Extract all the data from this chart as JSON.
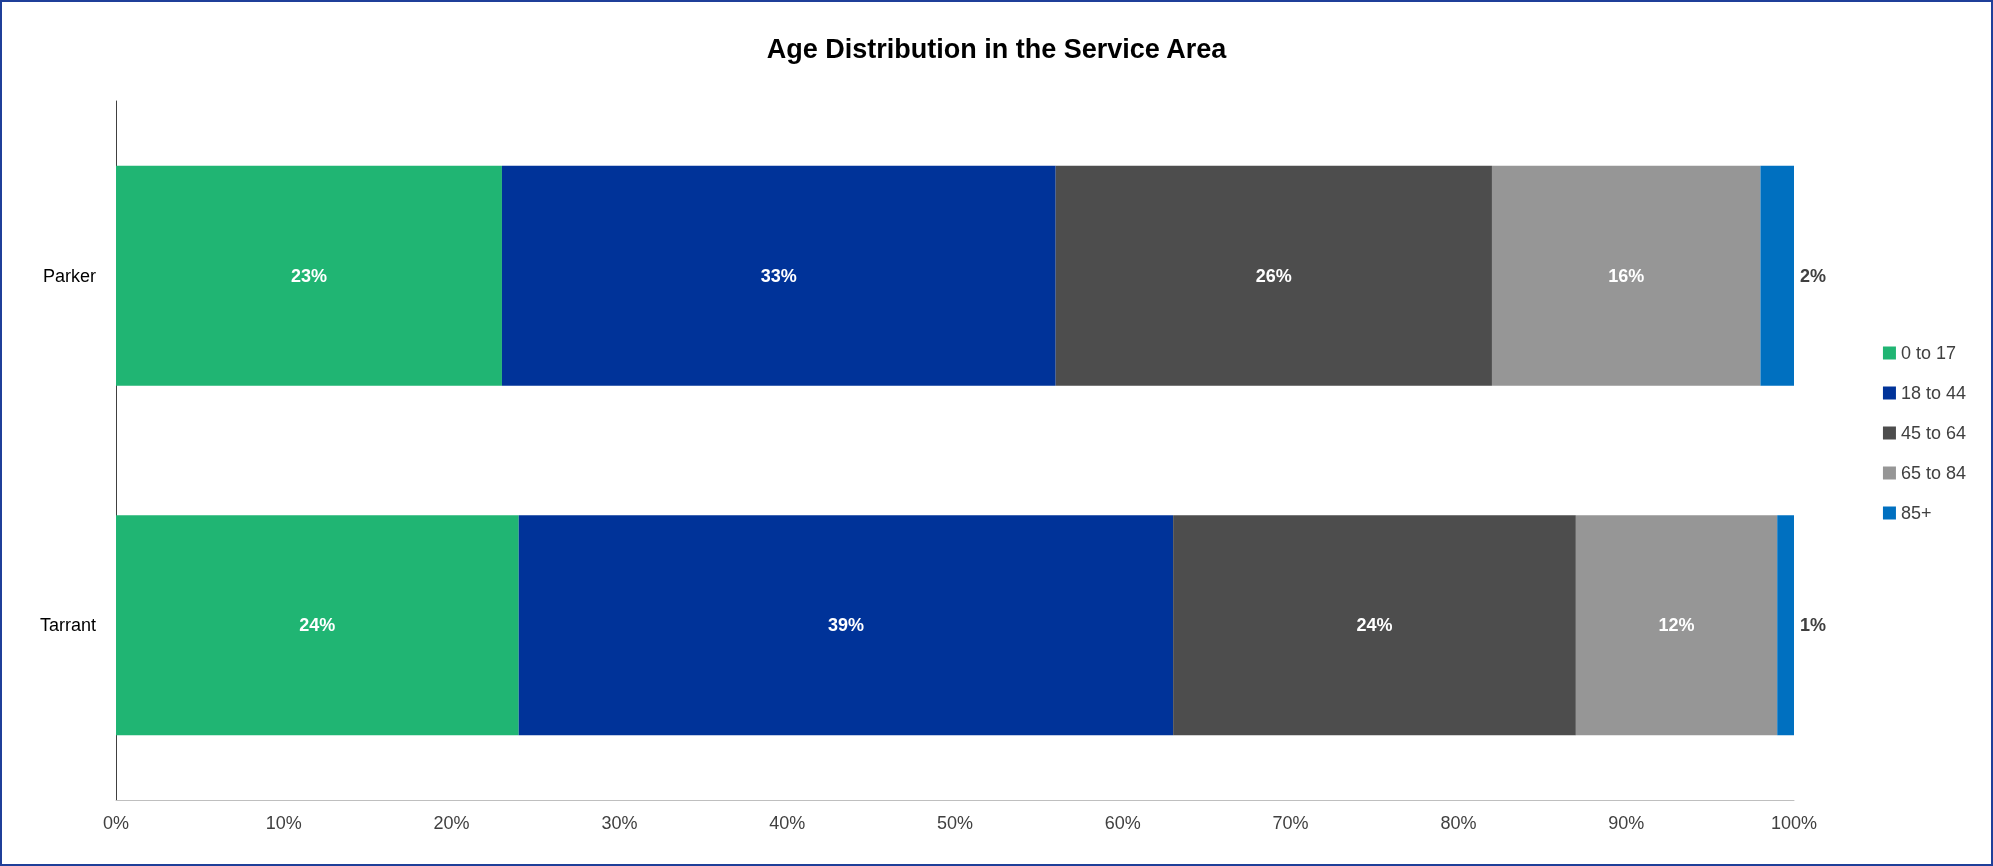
{
  "chart_data": {
    "type": "bar",
    "title": "Age Distribution in the Service Area",
    "orientation": "horizontal",
    "stacked": true,
    "categories": [
      "Parker",
      "Tarrant"
    ],
    "series": [
      {
        "name": "0 to 17",
        "color": "#20b573",
        "values": [
          23,
          24
        ],
        "value_labels": [
          "23%",
          "24%"
        ]
      },
      {
        "name": "18 to 44",
        "color": "#003399",
        "values": [
          33,
          39
        ],
        "value_labels": [
          "33%",
          "39%"
        ]
      },
      {
        "name": "45 to 64",
        "color": "#4d4d4d",
        "values": [
          26,
          24
        ],
        "value_labels": [
          "26%",
          "24%"
        ]
      },
      {
        "name": "65 to 84",
        "color": "#969696",
        "values": [
          16,
          12
        ],
        "value_labels": [
          "16%",
          "12%"
        ]
      },
      {
        "name": "85+",
        "color": "#0070c0",
        "values": [
          2,
          1
        ],
        "value_labels": [
          "2%",
          "1%"
        ]
      }
    ],
    "xlim": [
      0,
      100
    ],
    "xticks": [
      {
        "value": 0,
        "label": "0%"
      },
      {
        "value": 10,
        "label": "10%"
      },
      {
        "value": 20,
        "label": "20%"
      },
      {
        "value": 30,
        "label": "30%"
      },
      {
        "value": 40,
        "label": "40%"
      },
      {
        "value": 50,
        "label": "50%"
      },
      {
        "value": 60,
        "label": "60%"
      },
      {
        "value": 70,
        "label": "70%"
      },
      {
        "value": 80,
        "label": "80%"
      },
      {
        "value": 90,
        "label": "90%"
      },
      {
        "value": 100,
        "label": "100%"
      }
    ],
    "grid": false,
    "legend": "right"
  }
}
